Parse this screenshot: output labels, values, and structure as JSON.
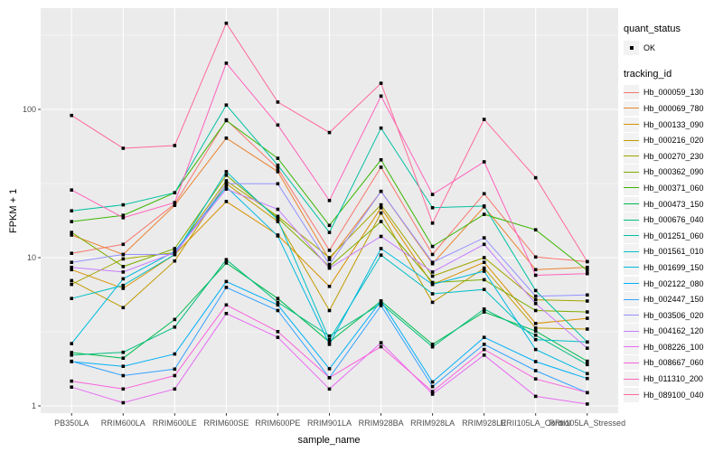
{
  "chart_data": {
    "type": "line",
    "title": "",
    "xlabel": "sample_name",
    "ylabel": "FPKM + 1",
    "y_scale": "log10",
    "y_ticks": [
      1,
      10,
      100
    ],
    "ylim": [
      1,
      430
    ],
    "grid": "on",
    "legend_position": "right",
    "legend": {
      "quant_status_title": "quant_status",
      "quant_status_items": [
        {
          "label": "OK",
          "marker": "black-point"
        }
      ],
      "tracking_title": "tracking_id"
    },
    "categories": [
      "PB350LA",
      "RRIM600LA",
      "RRIM600LE",
      "RRIM600SE",
      "RRIM600PE",
      "RRIM901LA",
      "RRIM928BA",
      "RRIM928LA",
      "RRIM928LE",
      "RRII105LA_Control",
      "RRII105LA_Stressed"
    ],
    "series": [
      {
        "name": "Hb_000059_130",
        "color": "#F8766D",
        "values": [
          10.7,
          12.3,
          23.0,
          85,
          40,
          11.2,
          40.7,
          10.5,
          27.0,
          10.1,
          9.4
        ]
      },
      {
        "name": "Hb_000069_780",
        "color": "#EA8331",
        "values": [
          14.2,
          10.5,
          22.5,
          64,
          38,
          9.7,
          28.0,
          9.1,
          22.0,
          8.3,
          8.6
        ]
      },
      {
        "name": "Hb_000133_090",
        "color": "#D89000",
        "values": [
          8.3,
          6.2,
          10.5,
          23.9,
          14.2,
          6.4,
          21.7,
          6.6,
          9.3,
          3.6,
          3.9
        ]
      },
      {
        "name": "Hb_000216_020",
        "color": "#C09B00",
        "values": [
          7.0,
          4.6,
          9.5,
          31.6,
          17.5,
          4.4,
          20.0,
          5.0,
          8.5,
          3.35,
          3.3
        ]
      },
      {
        "name": "Hb_000270_230",
        "color": "#A3A500",
        "values": [
          6.6,
          9.8,
          10.8,
          33.0,
          19.0,
          10.0,
          22.7,
          7.5,
          10.0,
          5.2,
          5.1
        ]
      },
      {
        "name": "Hb_000362_090",
        "color": "#7CAE00",
        "values": [
          14.8,
          8.7,
          11.5,
          36.0,
          18.5,
          8.7,
          17.5,
          6.8,
          7.1,
          4.4,
          4.3
        ]
      },
      {
        "name": "Hb_000371_060",
        "color": "#39B600",
        "values": [
          17.5,
          19.3,
          27.4,
          84.0,
          46.8,
          16.5,
          45.7,
          11.9,
          19.6,
          15.4,
          8.2
        ]
      },
      {
        "name": "Hb_000473_150",
        "color": "#00BB4E",
        "values": [
          2.29,
          2.1,
          3.83,
          9.2,
          5.3,
          2.7,
          5.1,
          2.6,
          4.3,
          3.2,
          2.0
        ]
      },
      {
        "name": "Hb_000676_040",
        "color": "#00BF7D",
        "values": [
          2.2,
          2.3,
          3.4,
          9.7,
          5.0,
          2.96,
          4.9,
          2.5,
          4.5,
          3.0,
          1.9
        ]
      },
      {
        "name": "Hb_001251_060",
        "color": "#00C1A3",
        "values": [
          20.7,
          22.7,
          27.4,
          107.0,
          42.0,
          14.8,
          74.8,
          21.7,
          22.3,
          6.0,
          2.7
        ]
      },
      {
        "name": "Hb_001561_010",
        "color": "#00BFC4",
        "values": [
          5.3,
          6.5,
          10.5,
          38.0,
          18.0,
          2.8,
          10.4,
          5.7,
          6.1,
          2.8,
          2.7
        ]
      },
      {
        "name": "Hb_001699_150",
        "color": "#00BAE0",
        "values": [
          2.63,
          7.2,
          11.0,
          30.0,
          14.0,
          2.6,
          11.5,
          6.6,
          8.1,
          2.4,
          1.65
        ]
      },
      {
        "name": "Hb_002122_080",
        "color": "#00B0F6",
        "values": [
          1.99,
          1.85,
          2.24,
          6.9,
          4.8,
          1.78,
          5.1,
          1.45,
          2.9,
          1.99,
          1.53
        ]
      },
      {
        "name": "Hb_002447_150",
        "color": "#35A2FF",
        "values": [
          2.0,
          1.6,
          1.77,
          6.3,
          4.4,
          1.55,
          4.75,
          1.35,
          2.6,
          1.73,
          1.23
        ]
      },
      {
        "name": "Hb_003506_020",
        "color": "#9590FF",
        "values": [
          9.3,
          10.5,
          10.5,
          31.6,
          31.5,
          9.0,
          28.0,
          9.3,
          13.6,
          5.5,
          5.6
        ]
      },
      {
        "name": "Hb_004162_120",
        "color": "#C77CFF",
        "values": [
          8.6,
          8.0,
          10.8,
          29.0,
          21.2,
          8.5,
          13.9,
          8.0,
          12.3,
          4.9,
          2.45
        ]
      },
      {
        "name": "Hb_008226_100",
        "color": "#E76BF3",
        "values": [
          1.34,
          1.05,
          1.3,
          4.2,
          2.9,
          1.3,
          2.67,
          1.2,
          2.2,
          1.16,
          1.03
        ]
      },
      {
        "name": "Hb_008667_060",
        "color": "#FA62DB",
        "values": [
          1.47,
          1.3,
          1.6,
          4.8,
          3.17,
          1.55,
          2.51,
          1.25,
          2.4,
          1.52,
          1.23
        ]
      },
      {
        "name": "Hb_011310_200",
        "color": "#FF62BC",
        "values": [
          28.6,
          18.6,
          23.5,
          205.0,
          78.4,
          24.3,
          123.0,
          26.7,
          44.3,
          7.6,
          7.8
        ]
      },
      {
        "name": "Hb_089100_040",
        "color": "#FF6A98",
        "values": [
          91.0,
          54.7,
          57.0,
          381.0,
          112.0,
          69.8,
          150.0,
          17.1,
          85.6,
          34.6,
          9.4
        ]
      }
    ],
    "style": {
      "panel_bg": "#EBEBEB",
      "grid_color": "#FFFFFF",
      "point_color": "#000000",
      "legend_key_bg": "#F2F2F2",
      "tick_label_color": "#4d4d4d"
    }
  }
}
